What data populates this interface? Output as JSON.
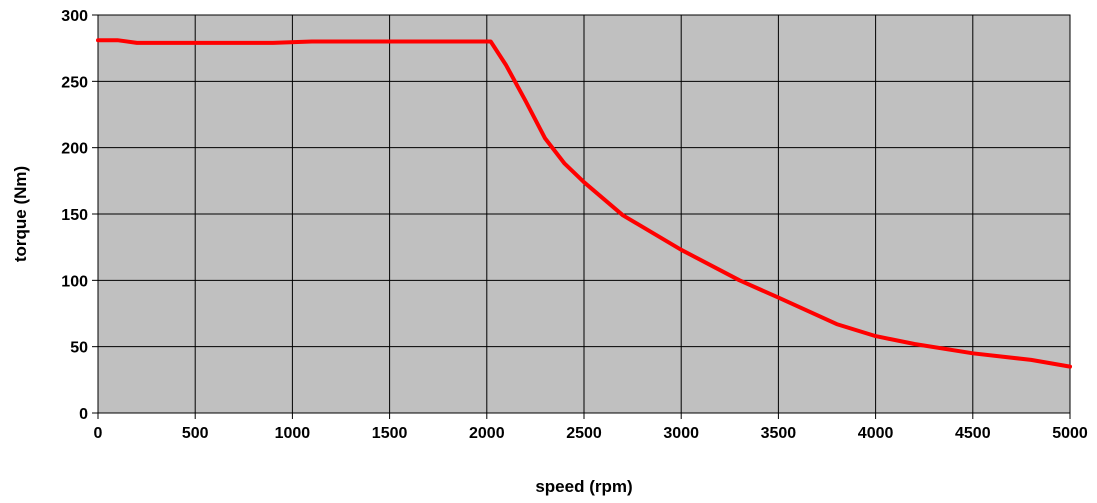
{
  "chart_data": {
    "type": "line",
    "title": "",
    "xlabel": "speed (rpm)",
    "ylabel": "torque (Nm)",
    "xlim": [
      0,
      5000
    ],
    "ylim": [
      0,
      300
    ],
    "x_ticks": [
      0,
      500,
      1000,
      1500,
      2000,
      2500,
      3000,
      3500,
      4000,
      4500,
      5000
    ],
    "y_ticks": [
      0,
      50,
      100,
      150,
      200,
      250,
      300
    ],
    "grid": true,
    "legend": "none",
    "plot_background": "#c0c0c0",
    "grid_color": "#000000",
    "series": [
      {
        "color": "#ff0000",
        "x": [
          0,
          100,
          200,
          500,
          900,
          1100,
          1500,
          2000,
          2020,
          2100,
          2200,
          2300,
          2400,
          2500,
          2700,
          3000,
          3300,
          3500,
          3800,
          4000,
          4200,
          4500,
          4800,
          5000
        ],
        "y": [
          281,
          281,
          279,
          279,
          279,
          280,
          280,
          280,
          280,
          262,
          235,
          207,
          188,
          174,
          149,
          123,
          100,
          87,
          67,
          58,
          52,
          45,
          40,
          35
        ]
      }
    ]
  }
}
